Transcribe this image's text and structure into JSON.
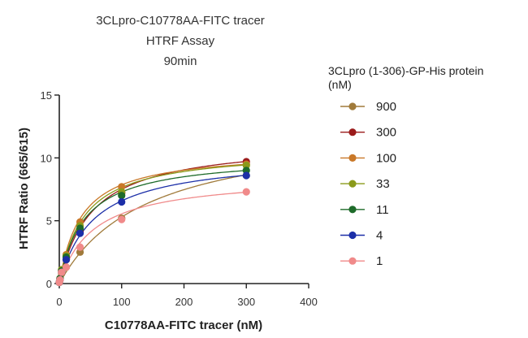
{
  "chart_data": {
    "type": "scatter",
    "title": [
      "3CLpro-C10778AA-FITC tracer",
      "HTRF Assay",
      "90min"
    ],
    "xlabel": "C10778AA-FITC tracer (nM)",
    "ylabel": "HTRF Ratio (665/615)",
    "xlim": [
      0,
      400
    ],
    "ylim": [
      0,
      15
    ],
    "xticks": [
      "0",
      "100",
      "200",
      "300",
      "400"
    ],
    "yticks": [
      "0",
      "5",
      "10",
      "15"
    ],
    "grid": false,
    "legend": {
      "title": [
        "3CLpro (1-306)-GP-His protein",
        "(nM)"
      ],
      "placement": "right"
    },
    "x": [
      0,
      1.2,
      3.7,
      11.1,
      33.3,
      100,
      300
    ],
    "series": [
      {
        "name": "900",
        "color": "#a07a3a",
        "values": [
          0.1,
          0.3,
          0.8,
          1.3,
          2.5,
          5.2,
          8.6
        ],
        "fit_ymax": 12.7,
        "fit_kd": 140
      },
      {
        "name": "300",
        "color": "#9b1b1b",
        "values": [
          0.1,
          0.4,
          1.0,
          1.9,
          4.1,
          7.2,
          9.7
        ],
        "fit_ymax": 11.4,
        "fit_kd": 52
      },
      {
        "name": "100",
        "color": "#c97828",
        "values": [
          0.1,
          0.4,
          1.1,
          2.3,
          4.9,
          7.7,
          9.5
        ],
        "fit_ymax": 10.6,
        "fit_kd": 35
      },
      {
        "name": "33",
        "color": "#8a9a1a",
        "values": [
          0.1,
          0.4,
          1.1,
          2.2,
          4.6,
          7.3,
          9.4
        ],
        "fit_ymax": 10.7,
        "fit_kd": 40
      },
      {
        "name": "11",
        "color": "#1e6b2a",
        "values": [
          0.1,
          0.4,
          1.0,
          2.1,
          4.4,
          7.0,
          9.0
        ],
        "fit_ymax": 10.2,
        "fit_kd": 40
      },
      {
        "name": "4",
        "color": "#1c2fa8",
        "values": [
          0.1,
          0.3,
          0.9,
          1.9,
          4.0,
          6.5,
          8.6
        ],
        "fit_ymax": 10.2,
        "fit_kd": 55
      },
      {
        "name": "1",
        "color": "#f08a8a",
        "values": [
          0.1,
          0.3,
          0.9,
          1.3,
          2.9,
          5.1,
          7.3
        ],
        "fit_ymax": 8.6,
        "fit_kd": 55
      }
    ]
  }
}
